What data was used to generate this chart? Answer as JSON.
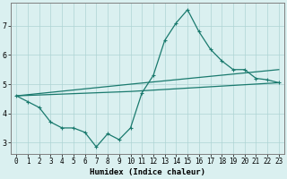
{
  "xlabel": "Humidex (Indice chaleur)",
  "bg_color": "#daf0f0",
  "line_color": "#1a7a6e",
  "grid_color": "#aed4d4",
  "xlim": [
    -0.5,
    23.5
  ],
  "ylim": [
    2.6,
    7.8
  ],
  "xticks": [
    0,
    1,
    2,
    3,
    4,
    5,
    6,
    7,
    8,
    9,
    10,
    11,
    12,
    13,
    14,
    15,
    16,
    17,
    18,
    19,
    20,
    21,
    22,
    23
  ],
  "yticks": [
    3,
    4,
    5,
    6,
    7
  ],
  "line1_x": [
    0,
    1,
    2,
    3,
    4,
    5,
    6,
    7,
    8,
    9,
    10,
    11,
    12,
    13,
    14,
    15,
    16,
    17,
    18,
    19,
    20,
    21,
    22,
    23
  ],
  "line1_y": [
    4.6,
    4.4,
    4.2,
    3.7,
    3.5,
    3.5,
    3.35,
    2.85,
    3.3,
    3.1,
    3.5,
    4.7,
    5.3,
    6.5,
    7.1,
    7.55,
    6.8,
    6.2,
    5.8,
    5.5,
    5.5,
    5.2,
    5.15,
    5.05
  ],
  "line2_x": [
    0,
    10,
    23
  ],
  "line2_y": [
    4.6,
    5.0,
    5.5
  ],
  "line3_x": [
    0,
    10,
    23
  ],
  "line3_y": [
    4.6,
    4.75,
    5.05
  ],
  "xlabel_fontsize": 6.5,
  "tick_fontsize": 5.5
}
